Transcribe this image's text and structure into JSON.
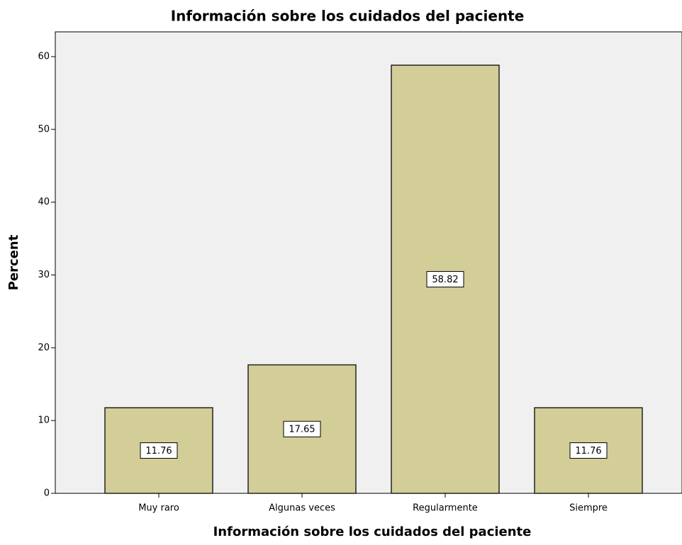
{
  "chart_data": {
    "type": "bar",
    "title": "Información sobre los cuidados del paciente",
    "x_label": "Información sobre los cuidados del paciente",
    "y_label": "Percent",
    "categories": [
      "Muy raro",
      "Algunas veces",
      "Regularmente",
      "Siempre"
    ],
    "values": [
      11.76,
      17.65,
      58.82,
      11.76
    ],
    "color": "#d3ce97",
    "ylim": [
      0,
      63.4
    ],
    "yticks": [
      0,
      10,
      20,
      30,
      40,
      50,
      60
    ],
    "grid": false
  }
}
